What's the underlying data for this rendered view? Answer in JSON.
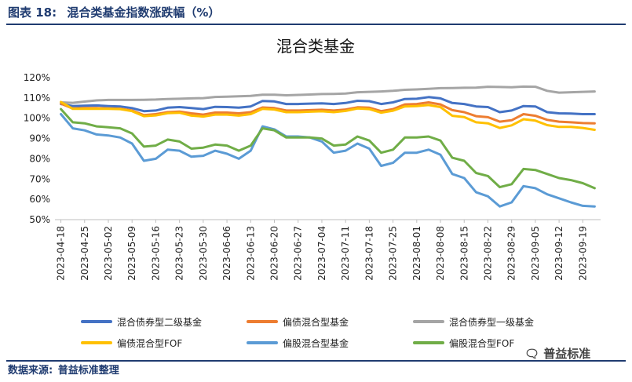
{
  "caption": {
    "figure_label": "图表 18:",
    "figure_title": "混合类基金指数涨跌幅（%）"
  },
  "source": {
    "label": "数据来源:",
    "value": "普益标准整理"
  },
  "watermark": {
    "text": "普益标准",
    "icon": "wechat-icon"
  },
  "chart_data": {
    "type": "line",
    "title": "混合类基金",
    "x": [
      "2023-04-18",
      "2023-04-21",
      "2023-04-25",
      "2023-04-28",
      "2023-05-02",
      "2023-05-05",
      "2023-05-09",
      "2023-05-12",
      "2023-05-16",
      "2023-05-19",
      "2023-05-23",
      "2023-05-26",
      "2023-05-30",
      "2023-06-02",
      "2023-06-06",
      "2023-06-09",
      "2023-06-13",
      "2023-06-16",
      "2023-06-20",
      "2023-06-23",
      "2023-06-27",
      "2023-06-30",
      "2023-07-04",
      "2023-07-07",
      "2023-07-11",
      "2023-07-14",
      "2023-07-18",
      "2023-07-21",
      "2023-07-25",
      "2023-07-28",
      "2023-08-01",
      "2023-08-04",
      "2023-08-08",
      "2023-08-11",
      "2023-08-15",
      "2023-08-18",
      "2023-08-22",
      "2023-08-25",
      "2023-08-29",
      "2023-09-01",
      "2023-09-05",
      "2023-09-08",
      "2023-09-12",
      "2023-09-15",
      "2023-09-19",
      "2023-09-22"
    ],
    "x_tick_labels": [
      "2023-04-18",
      "2023-04-25",
      "2023-05-02",
      "2023-05-09",
      "2023-05-16",
      "2023-05-23",
      "2023-05-30",
      "2023-06-06",
      "2023-06-13",
      "2023-06-20",
      "2023-06-27",
      "2023-07-04",
      "2023-07-11",
      "2023-07-18",
      "2023-07-25",
      "2023-08-01",
      "2023-08-08",
      "2023-08-15",
      "2023-08-22",
      "2023-08-29",
      "2023-09-05",
      "2023-09-12",
      "2023-09-19"
    ],
    "ylim": [
      50,
      120
    ],
    "y_ticks": [
      50,
      60,
      70,
      80,
      90,
      100,
      110,
      120
    ],
    "y_tick_labels": [
      "50%",
      "60%",
      "70%",
      "80%",
      "90%",
      "100%",
      "110%",
      "120%"
    ],
    "grid": false,
    "legend_position": "bottom",
    "series": [
      {
        "name": "混合债券型二级基金",
        "color": "#4472c4",
        "values": [
          107.0,
          106.0,
          106.2,
          106.3,
          106.0,
          105.8,
          105.0,
          103.5,
          103.8,
          105.2,
          105.5,
          105.0,
          104.5,
          105.6,
          105.5,
          105.2,
          105.8,
          108.5,
          108.3,
          107.0,
          107.0,
          107.2,
          107.3,
          107.0,
          107.5,
          108.6,
          108.4,
          107.0,
          107.8,
          109.5,
          109.6,
          110.4,
          109.8,
          107.5,
          107.0,
          105.8,
          105.5,
          103.0,
          103.8,
          106.0,
          105.8,
          103.0,
          102.4,
          102.3,
          102.0,
          102.0
        ]
      },
      {
        "name": "偏债混合型基金",
        "color": "#ed7d31",
        "values": [
          107.2,
          104.8,
          105.0,
          105.0,
          104.8,
          104.7,
          103.8,
          101.5,
          102.0,
          103.0,
          103.3,
          102.4,
          101.8,
          102.8,
          102.8,
          102.4,
          103.0,
          105.3,
          105.0,
          103.8,
          103.8,
          104.0,
          104.2,
          103.8,
          104.3,
          105.4,
          105.2,
          103.5,
          104.5,
          106.8,
          107.0,
          107.8,
          106.8,
          104.0,
          103.0,
          101.0,
          100.5,
          98.3,
          99.0,
          102.0,
          101.2,
          99.2,
          98.3,
          98.0,
          97.6,
          97.5
        ]
      },
      {
        "name": "混合债券型一级基金",
        "color": "#a5a5a5",
        "values": [
          107.8,
          107.6,
          108.2,
          108.8,
          109.0,
          109.0,
          109.0,
          109.1,
          109.2,
          109.5,
          109.6,
          109.8,
          109.9,
          110.5,
          110.6,
          110.8,
          111.0,
          111.6,
          111.6,
          111.3,
          111.5,
          111.7,
          111.9,
          112.0,
          112.2,
          112.8,
          113.0,
          113.2,
          113.5,
          114.0,
          114.2,
          114.5,
          114.8,
          114.9,
          115.0,
          115.1,
          115.5,
          115.4,
          115.3,
          115.6,
          115.5,
          113.5,
          112.6,
          112.8,
          113.0,
          113.2
        ]
      },
      {
        "name": "偏债混合型FOF",
        "color": "#ffc000",
        "values": [
          108.0,
          104.6,
          104.6,
          104.6,
          104.6,
          104.5,
          103.5,
          101.0,
          101.4,
          102.5,
          102.7,
          101.3,
          100.8,
          101.8,
          101.8,
          101.3,
          102.0,
          104.6,
          104.3,
          103.0,
          103.0,
          103.2,
          103.4,
          103.0,
          103.6,
          104.8,
          104.5,
          102.7,
          103.7,
          105.8,
          106.0,
          106.5,
          105.5,
          101.2,
          100.6,
          98.0,
          97.5,
          95.2,
          96.5,
          99.5,
          98.8,
          96.6,
          95.7,
          95.7,
          95.2,
          94.3
        ]
      },
      {
        "name": "偏股混合型基金",
        "color": "#5b9bd5",
        "values": [
          102.0,
          95.0,
          94.0,
          92.0,
          91.5,
          90.5,
          87.5,
          79.0,
          80.0,
          84.5,
          84.0,
          81.0,
          81.5,
          84.0,
          82.5,
          80.0,
          84.0,
          96.0,
          94.5,
          91.0,
          91.0,
          90.5,
          88.5,
          83.0,
          84.0,
          87.5,
          85.0,
          76.5,
          78.0,
          83.0,
          83.0,
          84.5,
          82.0,
          72.5,
          70.5,
          63.5,
          61.5,
          56.5,
          58.5,
          66.5,
          65.5,
          62.5,
          60.5,
          58.5,
          56.8,
          56.5
        ]
      },
      {
        "name": "偏股混合型FOF",
        "color": "#70ad47",
        "values": [
          104.5,
          98.0,
          97.5,
          96.0,
          95.5,
          95.0,
          92.5,
          86.0,
          86.5,
          89.5,
          88.5,
          85.0,
          85.5,
          87.0,
          86.5,
          84.0,
          86.5,
          95.0,
          94.0,
          90.5,
          90.5,
          90.5,
          90.0,
          86.5,
          87.0,
          91.0,
          89.0,
          83.0,
          84.5,
          90.5,
          90.5,
          91.0,
          89.0,
          80.5,
          79.0,
          73.0,
          71.5,
          66.0,
          67.5,
          75.0,
          74.5,
          72.5,
          70.5,
          69.5,
          68.0,
          65.5
        ]
      }
    ]
  }
}
